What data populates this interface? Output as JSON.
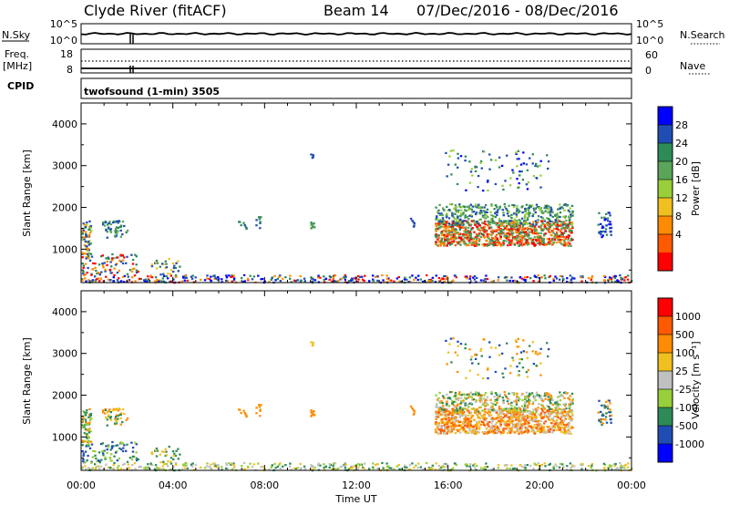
{
  "header": {
    "title": "Clyde River (fitACF)",
    "beam": "Beam 14",
    "date_range": "07/Dec/2016 - 08/Dec/2016"
  },
  "strip": {
    "nsky_label": "N.Sky",
    "nsky_ticks": [
      "10^5",
      "10^0"
    ],
    "nsearch_label": "N.Search",
    "nsearch_ticks": [
      "10^5",
      "10^0"
    ],
    "freq_label_1": "Freq.",
    "freq_label_2": "[MHz]",
    "freq_ticks": [
      "18",
      "8"
    ],
    "nave_label": "Nave",
    "nave_ticks": [
      "60",
      "0"
    ],
    "cpid_label": "CPID",
    "cpid_text": "twofsound (1-min) 3505"
  },
  "colors": {
    "power_bar": [
      "#0000ff",
      "#1f4db4",
      "#2e8b57",
      "#5aa55a",
      "#98cf3a",
      "#f0c020",
      "#ff8c00",
      "#ff5a00",
      "#ff0000"
    ],
    "velocity_bar": [
      "#ff0000",
      "#ff5a00",
      "#ff8c00",
      "#f0c020",
      "#c0c0c0",
      "#98cf3a",
      "#2e8b57",
      "#1f4db4",
      "#0000ff"
    ]
  },
  "chart_data": [
    {
      "type": "heatmap",
      "title": "",
      "ylabel": "Slant Range [km]",
      "xlabel": "",
      "x_ticks": [
        "00:00",
        "04:00",
        "08:00",
        "12:00",
        "16:00",
        "20:00",
        "00:00"
      ],
      "y_ticks": [
        "1000",
        "2000",
        "3000",
        "4000"
      ],
      "ylim": [
        200,
        4500
      ],
      "xlim_hours": [
        0,
        24
      ],
      "colorbar": {
        "label": "Power [dB]",
        "ticks": [
          "28",
          "24",
          "20",
          "16",
          "12",
          "8",
          "4"
        ]
      }
    },
    {
      "type": "heatmap",
      "title": "",
      "ylabel": "Slant Range [km]",
      "xlabel": "Time UT",
      "x_ticks": [
        "00:00",
        "04:00",
        "08:00",
        "12:00",
        "16:00",
        "20:00",
        "00:00"
      ],
      "y_ticks": [
        "1000",
        "2000",
        "3000",
        "4000"
      ],
      "ylim": [
        200,
        4500
      ],
      "xlim_hours": [
        0,
        24
      ],
      "colorbar": {
        "label": "Velocity [m s⁻¹]",
        "ticks": [
          "1000",
          "500",
          "100",
          "25",
          "-25",
          "-100",
          "-500",
          "-1000"
        ]
      }
    }
  ]
}
